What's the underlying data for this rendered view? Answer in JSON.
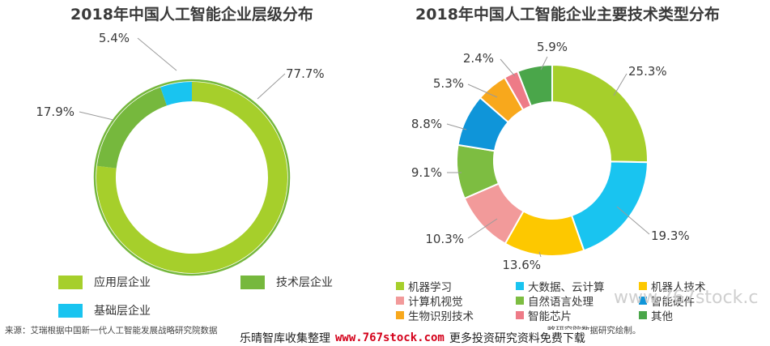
{
  "chart_data": [
    {
      "type": "pie",
      "title": "2018年中国人工智能企业层级分布",
      "categories": [
        "应用层企业",
        "技术层企业",
        "基础层企业"
      ],
      "values": [
        77.7,
        17.9,
        5.4
      ],
      "labels": [
        "77.7%",
        "17.9%",
        "5.4%"
      ],
      "colors": [
        "#a6cf2b",
        "#76b83d",
        "#19c4f0"
      ],
      "legend_position": "bottom"
    },
    {
      "type": "pie",
      "title": "2018年中国人工智能企业主要技术类型分布",
      "categories": [
        "机器学习",
        "大数据、云计算",
        "机器人技术",
        "计算机视觉",
        "自然语言处理",
        "智能硬件",
        "生物识别技术",
        "智能芯片",
        "其他"
      ],
      "values": [
        25.3,
        19.3,
        13.6,
        10.3,
        9.1,
        8.8,
        5.3,
        2.4,
        5.9
      ],
      "labels": [
        "25.3%",
        "19.3%",
        "13.6%",
        "10.3%",
        "9.1%",
        "8.8%",
        "5.3%",
        "2.4%",
        "5.9%"
      ],
      "colors": [
        "#a6cf2b",
        "#19c4f0",
        "#fdc800",
        "#f29a9a",
        "#7dbd41",
        "#0f95d9",
        "#f8a81c",
        "#ee7b87",
        "#4aa64a"
      ],
      "legend_position": "bottom"
    }
  ],
  "footer": {
    "source": "来源：艾瑞根据中国新一代人工智能发展战略研究院数据",
    "source_tail": "略研究院数据研究绘制。"
  },
  "watermark": {
    "prefix": "乐晴智库收集整理",
    "url": "www.767stock.com",
    "suffix": "更多投资研究资料免费下载",
    "corner": "www.767stock.c"
  }
}
